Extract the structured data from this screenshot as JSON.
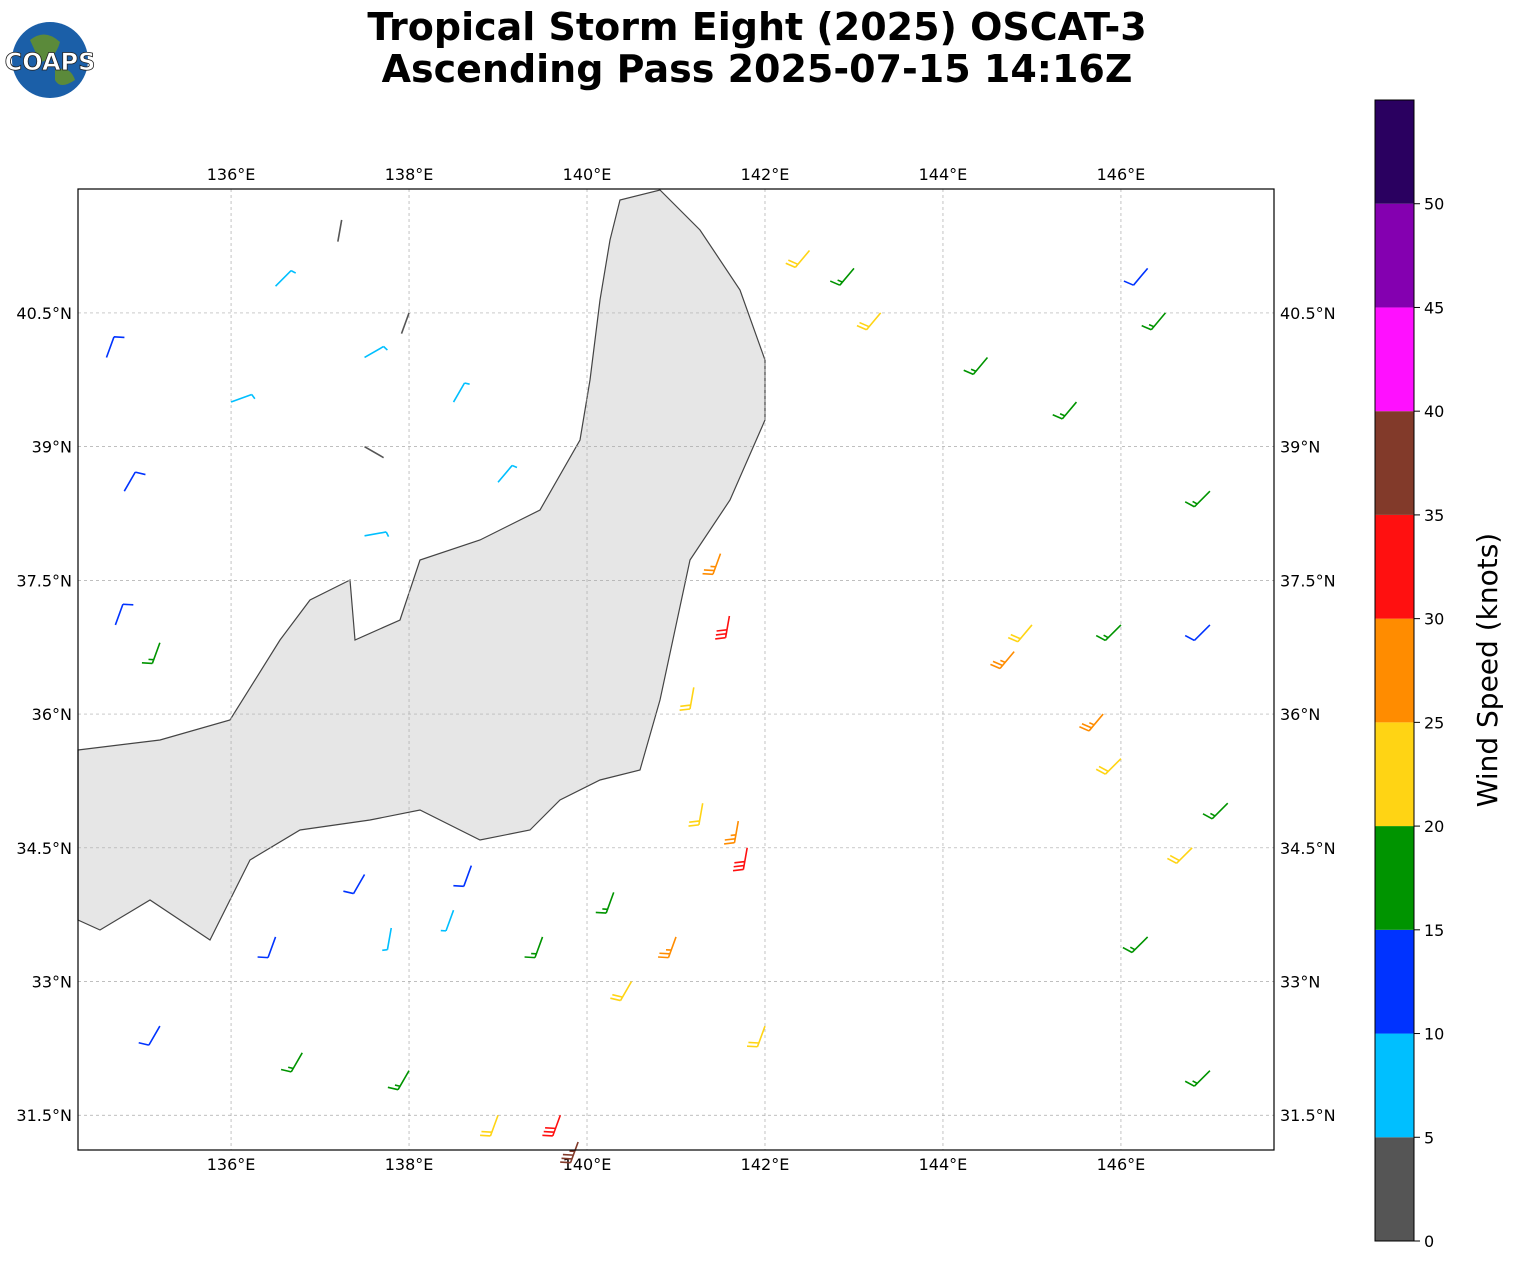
{
  "chart_data": {
    "type": "wind-barb-map",
    "logo": "COAPS",
    "title": "Tropical Storm Eight (2025) OSCAT-3",
    "subtitle": "Ascending Pass 2025-07-15 14:16Z",
    "xlim": [
      134.28,
      147.72
    ],
    "ylim": [
      31.11,
      41.89
    ],
    "xticks": [
      {
        "value": 136,
        "label": "136°E"
      },
      {
        "value": 138,
        "label": "138°E"
      },
      {
        "value": 140,
        "label": "140°E"
      },
      {
        "value": 142,
        "label": "142°E"
      },
      {
        "value": 144,
        "label": "144°E"
      },
      {
        "value": 146,
        "label": "146°E"
      }
    ],
    "yticks": [
      {
        "value": 31.5,
        "label": "31.5°N"
      },
      {
        "value": 33,
        "label": "33°N"
      },
      {
        "value": 34.5,
        "label": "34.5°N"
      },
      {
        "value": 36,
        "label": "36°N"
      },
      {
        "value": 37.5,
        "label": "37.5°N"
      },
      {
        "value": 39,
        "label": "39°N"
      },
      {
        "value": 40.5,
        "label": "40.5°N"
      }
    ],
    "grid": true,
    "barbs": {
      "lon": [
        136.5,
        137.5,
        138.5,
        136.0,
        139.0,
        137.5,
        137.2,
        138.0,
        137.5,
        134.6,
        134.8,
        134.7,
        135.2,
        136.5,
        137.5,
        138.7,
        135.2,
        137.8,
        138.5,
        136.8,
        138.0,
        139.5,
        140.3,
        140.5,
        139.0,
        141.3,
        141.2,
        142.0,
        141.0,
        141.7,
        141.5,
        141.6,
        141.8,
        139.7,
        139.9,
        143.0,
        144.5,
        145.5,
        146.5,
        147.0,
        146.0,
        147.2,
        146.3,
        147.0,
        142.5,
        143.3,
        145.0,
        146.0,
        146.8,
        144.8,
        145.8,
        146.3,
        147.0
      ],
      "lat": [
        40.8,
        40.0,
        39.5,
        39.5,
        38.6,
        38.0,
        41.3,
        40.5,
        39.0,
        40.0,
        38.5,
        37.0,
        36.8,
        33.5,
        34.2,
        34.3,
        32.5,
        33.6,
        33.8,
        32.2,
        32.0,
        33.5,
        34.0,
        33.0,
        31.5,
        35.0,
        36.3,
        32.5,
        33.5,
        34.8,
        37.8,
        37.1,
        34.5,
        31.5,
        31.2,
        41.0,
        40.0,
        39.5,
        40.5,
        38.5,
        37.0,
        35.0,
        33.5,
        32.0,
        41.2,
        40.5,
        37.0,
        35.5,
        34.5,
        36.7,
        36.0,
        41.0,
        37.0
      ],
      "speed": [
        8,
        7,
        8,
        9,
        8,
        7,
        3,
        4,
        3,
        12,
        13,
        11,
        16,
        12,
        12,
        13,
        13,
        9,
        8,
        17,
        16,
        18,
        19,
        22,
        23,
        22,
        23,
        22,
        27,
        28,
        28,
        32,
        31,
        33,
        36,
        17,
        18,
        17,
        17,
        18,
        17,
        18,
        17,
        18,
        22,
        22,
        23,
        22,
        22,
        26,
        27,
        12,
        13
      ],
      "direction": [
        45,
        60,
        30,
        70,
        40,
        80,
        10,
        200,
        120,
        20,
        30,
        20,
        200,
        200,
        210,
        200,
        210,
        190,
        200,
        210,
        210,
        200,
        200,
        210,
        200,
        190,
        190,
        200,
        200,
        190,
        200,
        190,
        190,
        200,
        200,
        220,
        220,
        220,
        220,
        225,
        225,
        225,
        225,
        225,
        220,
        220,
        220,
        225,
        225,
        220,
        220,
        220,
        225
      ]
    },
    "colorbar": {
      "label": "Wind Speed (knots)",
      "levels": [
        0,
        5,
        10,
        15,
        20,
        25,
        30,
        35,
        40,
        45,
        50,
        55
      ],
      "colors": [
        "#555555",
        "#00bfff",
        "#0033ff",
        "#009400",
        "#ffd414",
        "#ff8c00",
        "#ff1010",
        "#823a2a",
        "#ff10ff",
        "#8400b0",
        "#2a0060"
      ],
      "ticks": [
        0,
        5,
        10,
        15,
        20,
        25,
        30,
        35,
        40,
        45,
        50
      ]
    }
  }
}
